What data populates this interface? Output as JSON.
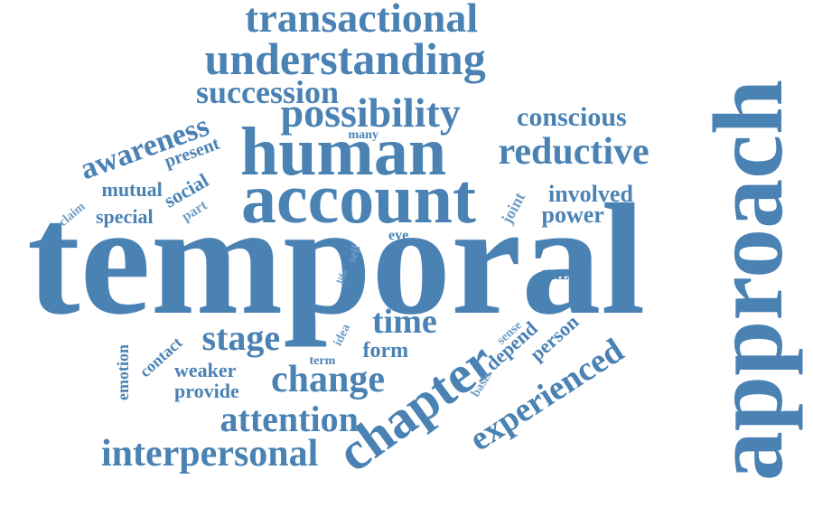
{
  "cloud": {
    "color": "#4a82b4",
    "light_color": "#6f9dc6",
    "words": [
      {
        "text": "temporal"
      },
      {
        "text": "approach"
      },
      {
        "text": "account"
      },
      {
        "text": "human"
      },
      {
        "text": "chapter"
      },
      {
        "text": "possibility"
      },
      {
        "text": "understanding"
      },
      {
        "text": "transactional"
      },
      {
        "text": "succession"
      },
      {
        "text": "reductive"
      },
      {
        "text": "conscious"
      },
      {
        "text": "awareness"
      },
      {
        "text": "present"
      },
      {
        "text": "many"
      },
      {
        "text": "social"
      },
      {
        "text": "mutual"
      },
      {
        "text": "special"
      },
      {
        "text": "claim"
      },
      {
        "text": "part"
      },
      {
        "text": "joint"
      },
      {
        "text": "involved"
      },
      {
        "text": "power"
      },
      {
        "text": "eye"
      },
      {
        "text": "self"
      },
      {
        "text": "life"
      },
      {
        "text": "gaze"
      },
      {
        "text": "stage"
      },
      {
        "text": "time"
      },
      {
        "text": "idea"
      },
      {
        "text": "form"
      },
      {
        "text": "term"
      },
      {
        "text": "change"
      },
      {
        "text": "contact"
      },
      {
        "text": "weaker"
      },
      {
        "text": "provide"
      },
      {
        "text": "emotion"
      },
      {
        "text": "attention"
      },
      {
        "text": "interpersonal"
      },
      {
        "text": "experienced"
      },
      {
        "text": "person"
      },
      {
        "text": "depend"
      },
      {
        "text": "sense"
      },
      {
        "text": "basis"
      }
    ]
  }
}
